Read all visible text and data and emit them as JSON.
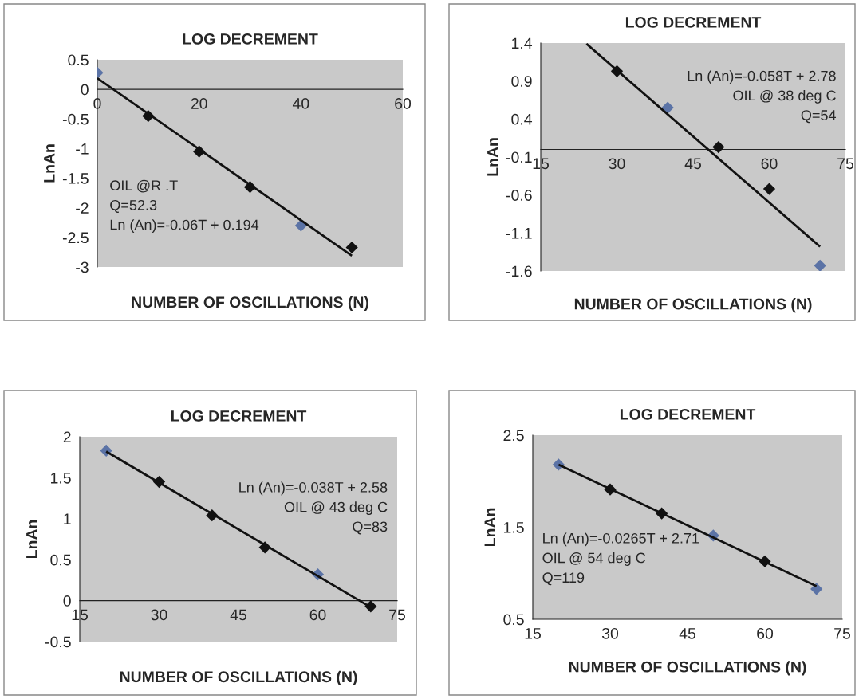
{
  "chart_data": [
    {
      "type": "scatter",
      "title": "LOG DECREMENT",
      "xlabel": "NUMBER OF OSCILLATIONS (N)",
      "ylabel": "LnAn",
      "xlim": [
        0,
        60
      ],
      "xticks": [
        0,
        20,
        40,
        60
      ],
      "ylim": [
        -3,
        0.5
      ],
      "yticks": [
        -3,
        -2.5,
        -2,
        -1.5,
        -1,
        -0.5,
        0,
        0.5
      ],
      "series": [
        {
          "marker": "diamond",
          "x": [
            0,
            10,
            20,
            30,
            40,
            50
          ],
          "values": [
            0.28,
            -0.45,
            -1.05,
            -1.65,
            -2.3,
            -2.67
          ],
          "colors": [
            "#5b73a6",
            "#111111",
            "#111111",
            "#111111",
            "#5b73a6",
            "#111111"
          ]
        },
        {
          "type": "line",
          "x": [
            0,
            50
          ],
          "values": [
            0.19,
            -2.81
          ],
          "color": "#111111"
        }
      ],
      "annotations": [
        "OIL @R .T",
        "Q=52.3",
        "Ln (An)=-0.06T + 0.194"
      ]
    },
    {
      "type": "scatter",
      "title": "LOG DECREMENT",
      "xlabel": "NUMBER OF OSCILLATIONS (N)",
      "ylabel": "LnAn",
      "xlim": [
        15,
        75
      ],
      "xticks": [
        15,
        30,
        45,
        60,
        75
      ],
      "ylim": [
        -1.6,
        1.4
      ],
      "yticks": [
        -1.6,
        -1.1,
        -0.6,
        -0.1,
        0.4,
        0.9,
        1.4
      ],
      "series": [
        {
          "marker": "diamond",
          "x": [
            30,
            40,
            50,
            60,
            70
          ],
          "values": [
            1.03,
            0.55,
            0.03,
            -0.52,
            -1.53
          ],
          "colors": [
            "#111111",
            "#5b73a6",
            "#111111",
            "#111111",
            "#5b73a6"
          ]
        },
        {
          "type": "line",
          "x": [
            24,
            70
          ],
          "values": [
            1.39,
            -1.28
          ],
          "color": "#111111"
        }
      ],
      "annotations": [
        "Ln (An)=-0.058T + 2.78",
        "OIL @ 38 deg C",
        "Q=54"
      ]
    },
    {
      "type": "scatter",
      "title": "LOG DECREMENT",
      "xlabel": "NUMBER OF OSCILLATIONS (N)",
      "ylabel": "LnAn",
      "xlim": [
        15,
        75
      ],
      "xticks": [
        15,
        30,
        45,
        60,
        75
      ],
      "ylim": [
        -0.5,
        2
      ],
      "yticks": [
        -0.5,
        0,
        0.5,
        1,
        1.5,
        2
      ],
      "series": [
        {
          "marker": "diamond",
          "x": [
            20,
            30,
            40,
            50,
            60,
            70
          ],
          "values": [
            1.83,
            1.45,
            1.04,
            0.65,
            0.32,
            -0.07
          ],
          "colors": [
            "#5b73a6",
            "#111111",
            "#111111",
            "#111111",
            "#5b73a6",
            "#111111"
          ]
        },
        {
          "type": "line",
          "x": [
            20,
            70
          ],
          "values": [
            1.82,
            -0.08
          ],
          "color": "#111111"
        }
      ],
      "annotations": [
        "Ln (An)=-0.038T + 2.58",
        "OIL @ 43 deg C",
        "Q=83"
      ]
    },
    {
      "type": "scatter",
      "title": "LOG DECREMENT",
      "xlabel": "NUMBER OF OSCILLATIONS (N)",
      "ylabel": "LnAn",
      "xlim": [
        15,
        75
      ],
      "xticks": [
        15,
        30,
        45,
        60,
        75
      ],
      "ylim": [
        0.5,
        2.5
      ],
      "yticks": [
        0.5,
        1.5,
        2.5
      ],
      "series": [
        {
          "marker": "diamond",
          "x": [
            20,
            30,
            40,
            50,
            60,
            70
          ],
          "values": [
            2.18,
            1.91,
            1.65,
            1.41,
            1.13,
            0.83
          ],
          "colors": [
            "#5b73a6",
            "#111111",
            "#111111",
            "#5b73a6",
            "#111111",
            "#5b73a6"
          ]
        },
        {
          "type": "line",
          "x": [
            20,
            70
          ],
          "values": [
            2.18,
            0.86
          ],
          "color": "#111111"
        }
      ],
      "annotations": [
        "Ln (An)=-0.0265T + 2.71",
        "OIL @ 54 deg C",
        "Q=119"
      ]
    }
  ]
}
